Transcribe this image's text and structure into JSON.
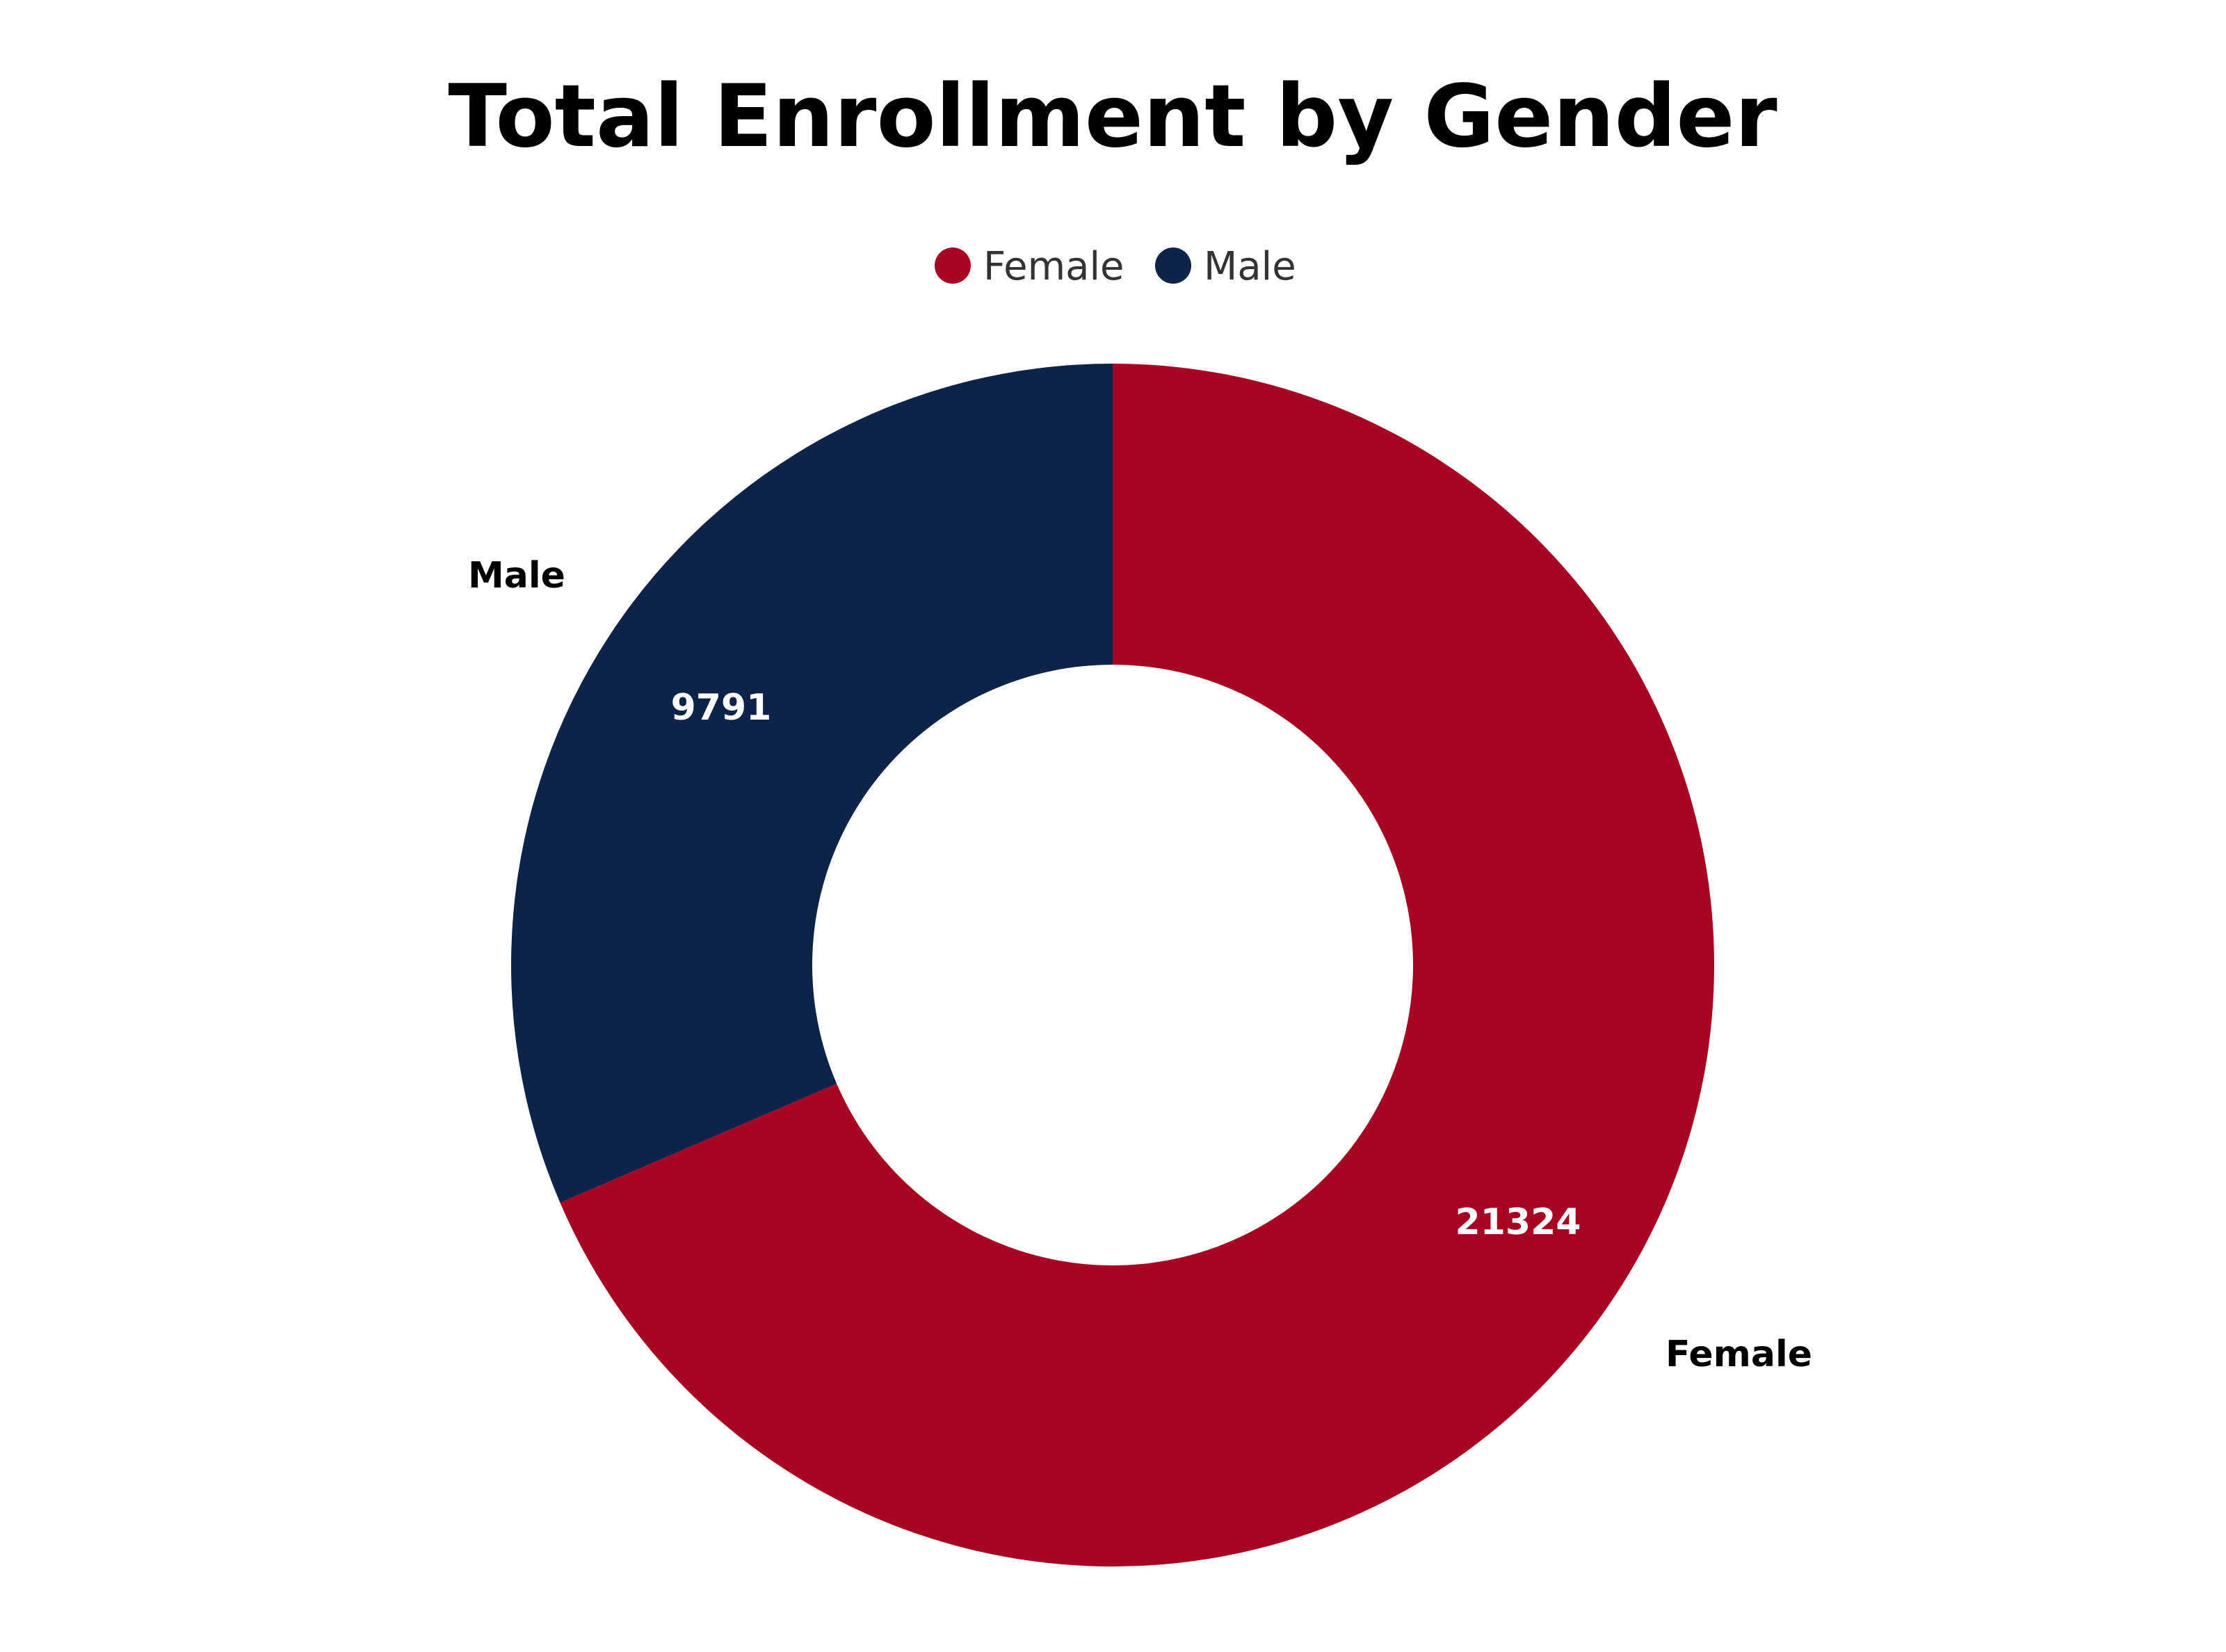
{
  "chart_data": {
    "type": "pie",
    "variant": "donut",
    "title": "Total Enrollment by Gender",
    "legend_position": "top",
    "slices": [
      {
        "label": "Female",
        "value": 21324,
        "color": "#a80522"
      },
      {
        "label": "Male",
        "value": 9791,
        "color": "#0e234a"
      }
    ]
  }
}
